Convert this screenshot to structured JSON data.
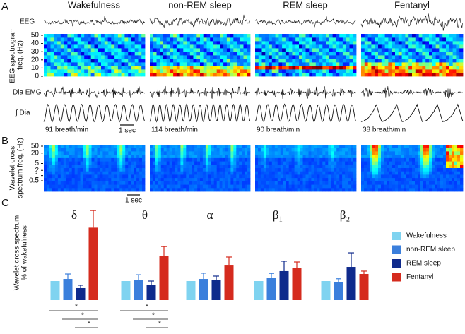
{
  "panels": {
    "A": {
      "label": "A",
      "columns": [
        "Wakefulness",
        "non-REM sleep",
        "REM sleep",
        "Fentanyl"
      ],
      "rows": {
        "eeg": "EEG",
        "spectrogram": [
          "EEG spectrogram",
          "freq. (Hz)"
        ],
        "emg": "Dia EMG",
        "dia": "∫ Dia"
      },
      "spectrogram_yticks": [
        50,
        40,
        30,
        20,
        10,
        0
      ],
      "breath_rates": [
        "91 breath/min",
        "114 breath/min",
        "90 breath/min",
        "38 breath/min"
      ],
      "scale_bar": "1 sec"
    },
    "B": {
      "label": "B",
      "ylabel": [
        "Wavelet cross",
        "spectrum freq. (Hz)"
      ],
      "yticks": [
        50,
        20,
        5,
        2,
        1,
        0.5
      ],
      "scale_bar": "1 sec"
    },
    "C": {
      "label": "C"
    }
  },
  "chart_data": {
    "type": "bar",
    "ylabel": [
      "Wavelet cross spectrum",
      "% of wakefulness"
    ],
    "categories": [
      "δ",
      "θ",
      "α",
      "β₁",
      "β₂"
    ],
    "series": [
      {
        "name": "Wakefulness",
        "color": "#7fd3f0",
        "values": [
          100,
          100,
          100,
          100,
          100
        ]
      },
      {
        "name": "non-REM sleep",
        "color": "#3b7fdc",
        "values": [
          111,
          107,
          111,
          118,
          93
        ],
        "errors": [
          26,
          26,
          30,
          22,
          19
        ]
      },
      {
        "name": "REM sleep",
        "color": "#0f2a8c",
        "values": [
          63,
          81,
          104,
          152,
          174
        ],
        "errors": [
          15,
          19,
          22,
          52,
          74
        ]
      },
      {
        "name": "Fentanyl",
        "color": "#d52b1e",
        "values": [
          380,
          233,
          185,
          170,
          137
        ],
        "errors": [
          90,
          48,
          41,
          30,
          15
        ]
      }
    ],
    "significance": [
      [
        "*",
        "*",
        "*"
      ],
      [
        "*",
        "*",
        "*"
      ],
      [],
      [],
      []
    ]
  }
}
